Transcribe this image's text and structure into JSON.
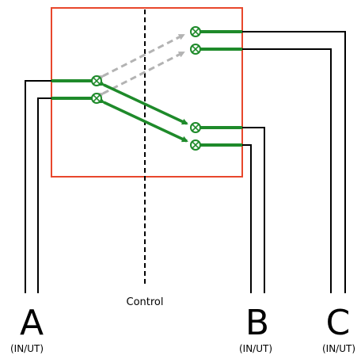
{
  "colors": {
    "frame": "#e8472c",
    "active": "#1e8a2a",
    "inactive": "#b3b3b3",
    "wire": "#000000"
  },
  "control": {
    "label": "Control"
  },
  "ports": [
    {
      "id": "a",
      "letter": "A",
      "sub": "(IN/UT)"
    },
    {
      "id": "b",
      "letter": "B",
      "sub": "(IN/UT)"
    },
    {
      "id": "c",
      "letter": "C",
      "sub": "(IN/UT)"
    }
  ],
  "icons": {
    "node": "crossed-circle-icon"
  }
}
